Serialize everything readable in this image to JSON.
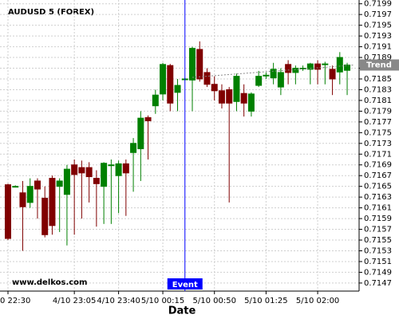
{
  "chart_data": {
    "type": "candlestick",
    "title": "AUDUSD 5 (FOREX)",
    "xlabel": "Date",
    "watermark": "www.delkos.com",
    "categories": [
      "0 22:30",
      null,
      null,
      null,
      null,
      null,
      null,
      null,
      null,
      "4/10 23:05",
      null,
      null,
      null,
      null,
      null,
      "4/10 23:40",
      null,
      null,
      null,
      null,
      null,
      "5/10 00:15",
      null,
      null,
      null,
      null,
      null,
      null,
      "5/10 00:50",
      null,
      null,
      null,
      null,
      null,
      null,
      "5/10 01:25",
      null,
      null,
      null,
      null,
      null,
      null,
      "5/10 02:00",
      null,
      null,
      null,
      null
    ],
    "open": [
      0.71653,
      0.7165,
      0.71638,
      0.7162,
      0.7166,
      0.71628,
      0.71665,
      0.7165,
      0.71635,
      0.7169,
      0.71685,
      0.71685,
      0.71665,
      0.7165,
      0.7169,
      0.7167,
      0.71692,
      0.71713,
      0.7172,
      0.71778,
      0.718,
      0.71822,
      0.71875,
      0.71825,
      0.7185,
      0.71848,
      0.71905,
      0.71862,
      0.7184,
      0.71828,
      0.7183,
      0.71808,
      0.71823,
      0.7179,
      0.71838,
      0.71857,
      0.71852,
      0.71835,
      0.71877,
      0.71862,
      0.7187,
      0.71868,
      0.71878,
      0.71878,
      0.71868,
      0.71863,
      0.71866
    ],
    "high": [
      0.71655,
      0.71652,
      0.7166,
      0.71665,
      0.71665,
      0.7165,
      0.7167,
      0.71665,
      0.7169,
      0.717,
      0.71698,
      0.71695,
      0.7168,
      0.71695,
      0.717,
      0.71698,
      0.717,
      0.7174,
      0.7179,
      0.71782,
      0.7183,
      0.7188,
      0.71878,
      0.7185,
      0.71852,
      0.7191,
      0.7192,
      0.7187,
      0.71855,
      0.7184,
      0.71835,
      0.7186,
      0.7184,
      0.71825,
      0.71865,
      0.71862,
      0.7188,
      0.7187,
      0.71885,
      0.71875,
      0.71875,
      0.7188,
      0.71885,
      0.71882,
      0.71875,
      0.719,
      0.7188
    ],
    "low": [
      0.7155,
      0.71648,
      0.7153,
      0.7161,
      0.7159,
      0.71555,
      0.7156,
      0.71565,
      0.7154,
      0.7156,
      0.7159,
      0.7162,
      0.71575,
      0.7158,
      0.7158,
      0.716,
      0.71595,
      0.7164,
      0.7166,
      0.717,
      0.71785,
      0.7181,
      0.7179,
      0.7179,
      0.71848,
      0.7179,
      0.71845,
      0.71835,
      0.7181,
      0.71795,
      0.7162,
      0.7179,
      0.7178,
      0.7178,
      0.71835,
      0.7185,
      0.7184,
      0.7182,
      0.7184,
      0.7184,
      0.71865,
      0.7184,
      0.7184,
      0.7184,
      0.7182,
      0.7184,
      0.7182
    ],
    "close": [
      0.71553,
      0.7165,
      0.71612,
      0.7165,
      0.71645,
      0.7156,
      0.71577,
      0.7166,
      0.71682,
      0.71672,
      0.71675,
      0.71668,
      0.71655,
      0.71693,
      0.7169,
      0.71692,
      0.71675,
      0.7173,
      0.71777,
      0.71772,
      0.7182,
      0.71877,
      0.71805,
      0.71838,
      0.7185,
      0.71907,
      0.7185,
      0.7184,
      0.71828,
      0.71805,
      0.71805,
      0.71855,
      0.71805,
      0.71822,
      0.71855,
      0.71857,
      0.71868,
      0.71862,
      0.71862,
      0.7187,
      0.7187,
      0.71878,
      0.71868,
      0.71878,
      0.7185,
      0.7189,
      0.71876
    ],
    "up_color": "#008000",
    "down_color": "#800000",
    "ylim": [
      0.71455,
      0.71997
    ],
    "yticks": [
      0.7147,
      0.7149,
      0.7151,
      0.7153,
      0.7155,
      0.7157,
      0.7159,
      0.7161,
      0.7163,
      0.7165,
      0.7167,
      0.7169,
      0.7171,
      0.7173,
      0.7175,
      0.7177,
      0.7179,
      0.7181,
      0.7183,
      0.7185,
      0.7187,
      0.7189,
      0.7191,
      0.7193,
      0.7195,
      0.7197,
      0.7199
    ],
    "grid": true,
    "event": {
      "label": "Event",
      "index": 24,
      "color": "#0000ff"
    },
    "trend": {
      "label": "Trend",
      "x": [
        25,
        47
      ],
      "values": [
        0.71853,
        0.71876
      ],
      "color": "#888888"
    }
  }
}
